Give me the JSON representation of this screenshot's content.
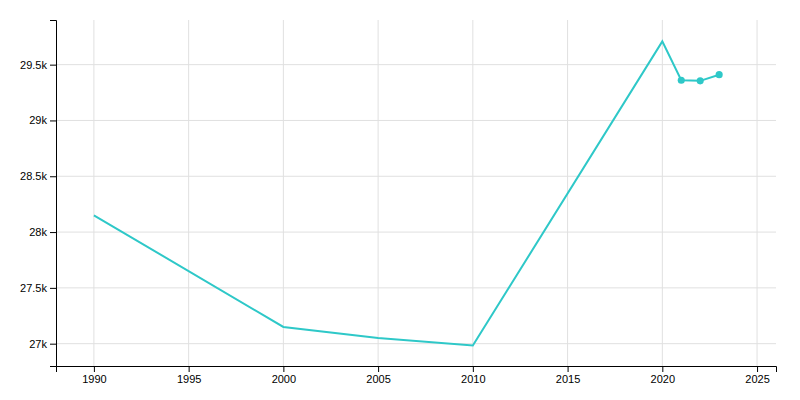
{
  "chart_data": {
    "type": "line",
    "series": [
      {
        "type": "line",
        "color": "#2ec8c8",
        "x": [
          1990,
          2000,
          2005,
          2010,
          2020,
          2021,
          2022,
          2023
        ],
        "values": [
          28150,
          27150,
          27050,
          26983,
          29708,
          29360,
          29355,
          29410
        ]
      },
      {
        "type": "scatter",
        "color": "#2ec8c8",
        "marker": "circle",
        "x": [
          2021,
          2022,
          2023
        ],
        "values": [
          29360,
          29355,
          29410
        ]
      }
    ],
    "xlim": [
      1988,
      2026
    ],
    "ylim": [
      26800,
      29900
    ],
    "xticks": [
      1990,
      1995,
      2000,
      2005,
      2010,
      2015,
      2020,
      2025
    ],
    "yticks": [
      {
        "value": 27000,
        "label": "27k"
      },
      {
        "value": 27500,
        "label": "27.5k"
      },
      {
        "value": 28000,
        "label": "28k"
      },
      {
        "value": 28500,
        "label": "28.5k"
      },
      {
        "value": 29000,
        "label": "29k"
      },
      {
        "value": 29500,
        "label": "29.5k"
      }
    ],
    "grid": true
  }
}
